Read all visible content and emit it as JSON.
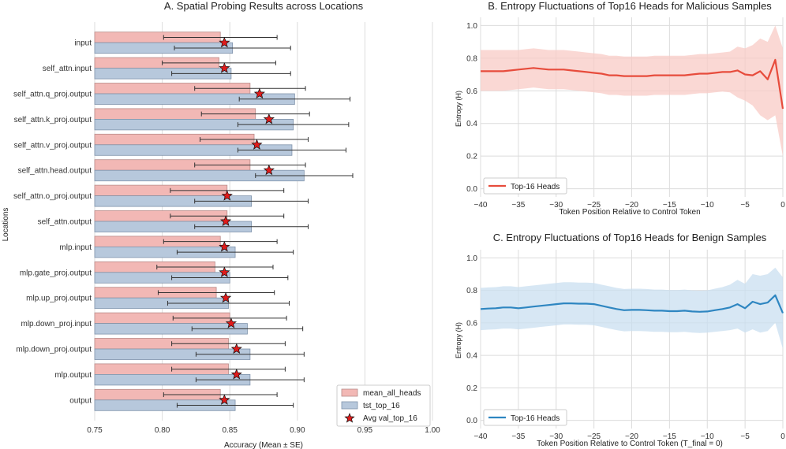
{
  "colors": {
    "mean": "#f2b8b5",
    "mean_edge": "#b88a88",
    "tst": "#b7c8dc",
    "tst_edge": "#7f93ab",
    "star": "#e01b1b",
    "malicious": "#e74c3c",
    "malicious_band": "#f8cbc6",
    "benign": "#2e86c1",
    "benign_band": "#c9dff0",
    "grid": "#dcdcdc"
  },
  "chart_data": [
    {
      "id": "A",
      "type": "bar",
      "orientation": "horizontal",
      "title": "A. Spatial Probing Results across Locations",
      "xlabel": "Accuracy (Mean ± SE)",
      "ylabel": "Locations",
      "xlim": [
        0.75,
        1.0
      ],
      "xticks": [
        "0.75",
        "0.80",
        "0.85",
        "0.90",
        "0.95",
        "1.00"
      ],
      "categories": [
        "input",
        "self_attn.input",
        "self_attn.q_proj.output",
        "self_attn.k_proj.output",
        "self_attn.v_proj.output",
        "self_attn.head.output",
        "self_attn.o_proj.output",
        "self_attn.output",
        "mlp.input",
        "mlp.gate_proj.output",
        "mlp.up_proj.output",
        "mlp.down_proj.input",
        "mlp.down_proj.output",
        "mlp.output",
        "output"
      ],
      "series": [
        {
          "name": "mean_all_heads",
          "values": [
            0.843,
            0.842,
            0.865,
            0.869,
            0.868,
            0.865,
            0.848,
            0.848,
            0.843,
            0.839,
            0.84,
            0.85,
            0.849,
            0.849,
            0.843
          ],
          "errors": [
            0.042,
            0.042,
            0.041,
            0.04,
            0.04,
            0.041,
            0.042,
            0.042,
            0.042,
            0.043,
            0.043,
            0.042,
            0.042,
            0.042,
            0.042
          ]
        },
        {
          "name": "tst_top_16",
          "values": [
            0.852,
            0.851,
            0.898,
            0.897,
            0.896,
            0.905,
            0.866,
            0.866,
            0.854,
            0.85,
            0.849,
            0.863,
            0.865,
            0.865,
            0.854
          ],
          "errors": [
            0.043,
            0.044,
            0.041,
            0.041,
            0.04,
            0.036,
            0.042,
            0.042,
            0.043,
            0.043,
            0.045,
            0.041,
            0.04,
            0.04,
            0.043
          ]
        },
        {
          "name": "Avg val_top_16",
          "values": [
            0.846,
            0.846,
            0.872,
            0.879,
            0.87,
            0.879,
            0.848,
            0.847,
            0.846,
            0.846,
            0.847,
            0.851,
            0.855,
            0.855,
            0.846
          ]
        }
      ],
      "legend": [
        "mean_all_heads",
        "tst_top_16",
        "Avg val_top_16"
      ],
      "legend_position": "bottom-right"
    },
    {
      "id": "B",
      "type": "line",
      "title": "B. Entropy Fluctuations of Top16 Heads for Malicious Samples",
      "xlabel": "Token Position Relative to Control Token",
      "ylabel": "Entropy (H)",
      "xlim": [
        -40,
        0
      ],
      "ylim": [
        -0.05,
        1.05
      ],
      "xticks": [
        "−40",
        "−35",
        "−30",
        "−25",
        "−20",
        "−15",
        "−10",
        "−5",
        "0"
      ],
      "yticks": [
        "0.0",
        "0.2",
        "0.4",
        "0.6",
        "0.8",
        "1.0"
      ],
      "series": [
        {
          "name": "Top-16 Heads",
          "x": [
            -40,
            -39,
            -38,
            -37,
            -36,
            -35,
            -34,
            -33,
            -32,
            -31,
            -30,
            -29,
            -28,
            -27,
            -26,
            -25,
            -24,
            -23,
            -22,
            -21,
            -20,
            -19,
            -18,
            -17,
            -16,
            -15,
            -14,
            -13,
            -12,
            -11,
            -10,
            -9,
            -8,
            -7,
            -6,
            -5,
            -4,
            -3,
            -2,
            -1,
            0
          ],
          "y": [
            0.72,
            0.72,
            0.72,
            0.72,
            0.725,
            0.73,
            0.735,
            0.74,
            0.735,
            0.73,
            0.73,
            0.73,
            0.725,
            0.72,
            0.715,
            0.71,
            0.705,
            0.695,
            0.695,
            0.69,
            0.69,
            0.69,
            0.69,
            0.695,
            0.695,
            0.695,
            0.695,
            0.695,
            0.7,
            0.705,
            0.705,
            0.71,
            0.715,
            0.715,
            0.725,
            0.7,
            0.695,
            0.72,
            0.67,
            0.79,
            0.49
          ],
          "lower": [
            0.6,
            0.6,
            0.6,
            0.6,
            0.605,
            0.61,
            0.615,
            0.62,
            0.615,
            0.61,
            0.61,
            0.61,
            0.605,
            0.6,
            0.595,
            0.59,
            0.585,
            0.575,
            0.575,
            0.57,
            0.57,
            0.57,
            0.57,
            0.575,
            0.575,
            0.575,
            0.575,
            0.575,
            0.58,
            0.585,
            0.585,
            0.59,
            0.595,
            0.59,
            0.56,
            0.54,
            0.51,
            0.45,
            0.42,
            0.45,
            0.2
          ],
          "upper": [
            0.85,
            0.85,
            0.85,
            0.85,
            0.85,
            0.85,
            0.855,
            0.86,
            0.855,
            0.85,
            0.85,
            0.85,
            0.845,
            0.84,
            0.835,
            0.83,
            0.825,
            0.815,
            0.815,
            0.81,
            0.81,
            0.81,
            0.81,
            0.815,
            0.815,
            0.815,
            0.815,
            0.815,
            0.82,
            0.825,
            0.825,
            0.83,
            0.835,
            0.84,
            0.87,
            0.86,
            0.88,
            0.92,
            0.9,
            1.0,
            0.86
          ]
        }
      ],
      "legend": [
        "Top-16 Heads"
      ],
      "legend_position": "bottom-left"
    },
    {
      "id": "C",
      "type": "line",
      "title": "C. Entropy Fluctuations of Top16 Heads for Benign Samples",
      "xlabel": "Token Position Relative to Control Token (T_final = 0)",
      "ylabel": "Entropy (H)",
      "xlim": [
        -40,
        0
      ],
      "ylim": [
        -0.05,
        1.05
      ],
      "xticks": [
        "−40",
        "−35",
        "−30",
        "−25",
        "−20",
        "−15",
        "−10",
        "−5",
        "0"
      ],
      "yticks": [
        "0.0",
        "0.2",
        "0.4",
        "0.6",
        "0.8",
        "1.0"
      ],
      "series": [
        {
          "name": "Top-16 Heads",
          "x": [
            -40,
            -39,
            -38,
            -37,
            -36,
            -35,
            -34,
            -33,
            -32,
            -31,
            -30,
            -29,
            -28,
            -27,
            -26,
            -25,
            -24,
            -23,
            -22,
            -21,
            -20,
            -19,
            -18,
            -17,
            -16,
            -15,
            -14,
            -13,
            -12,
            -11,
            -10,
            -9,
            -8,
            -7,
            -6,
            -5,
            -4,
            -3,
            -2,
            -1,
            0
          ],
          "y": [
            0.685,
            0.688,
            0.69,
            0.695,
            0.695,
            0.69,
            0.695,
            0.7,
            0.705,
            0.71,
            0.715,
            0.72,
            0.72,
            0.718,
            0.718,
            0.715,
            0.705,
            0.695,
            0.685,
            0.678,
            0.68,
            0.68,
            0.678,
            0.675,
            0.675,
            0.672,
            0.672,
            0.675,
            0.67,
            0.668,
            0.67,
            0.678,
            0.685,
            0.695,
            0.715,
            0.69,
            0.73,
            0.715,
            0.725,
            0.77,
            0.66
          ],
          "lower": [
            0.555,
            0.558,
            0.56,
            0.565,
            0.565,
            0.56,
            0.565,
            0.57,
            0.575,
            0.58,
            0.585,
            0.59,
            0.59,
            0.588,
            0.588,
            0.585,
            0.575,
            0.565,
            0.555,
            0.548,
            0.55,
            0.55,
            0.548,
            0.545,
            0.545,
            0.542,
            0.542,
            0.545,
            0.54,
            0.538,
            0.54,
            0.545,
            0.55,
            0.555,
            0.565,
            0.54,
            0.56,
            0.54,
            0.55,
            0.6,
            0.44
          ],
          "upper": [
            0.815,
            0.818,
            0.82,
            0.825,
            0.825,
            0.82,
            0.825,
            0.83,
            0.835,
            0.84,
            0.845,
            0.85,
            0.85,
            0.848,
            0.848,
            0.845,
            0.835,
            0.825,
            0.815,
            0.808,
            0.81,
            0.81,
            0.808,
            0.805,
            0.805,
            0.802,
            0.802,
            0.805,
            0.8,
            0.798,
            0.8,
            0.81,
            0.82,
            0.835,
            0.865,
            0.84,
            0.9,
            0.89,
            0.9,
            0.94,
            0.88
          ]
        }
      ],
      "legend": [
        "Top-16 Heads"
      ],
      "legend_position": "bottom-left"
    }
  ]
}
